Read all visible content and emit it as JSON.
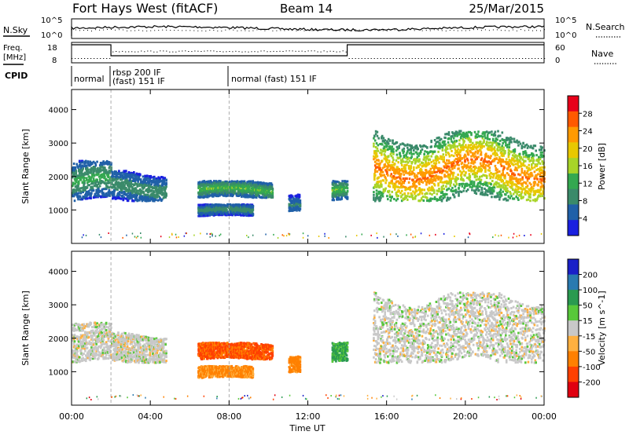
{
  "header": {
    "radar": "Fort Hays West (fitACF)",
    "beam": "Beam 14",
    "date": "25/Mar/2015"
  },
  "noise_panel": {
    "left_label": "N.Sky",
    "right_label": "N.Search",
    "left_ticks": [
      "10^5",
      "10^0"
    ],
    "right_ticks": [
      "10^5",
      "10^0"
    ]
  },
  "freq_panel": {
    "left_label_1": "Freq.",
    "left_label_2": "[MHz]",
    "right_label": "Nave",
    "left_ticks": [
      "18",
      "8"
    ],
    "right_ticks": [
      "60",
      "0"
    ]
  },
  "cpid_panel": {
    "label": "CPID",
    "modes": [
      "normal",
      "rbsp 200 IF",
      "(fast) 151 IF",
      "normal (fast) 151 IF"
    ]
  },
  "chart_data": [
    {
      "type": "heatmap",
      "panel": "power",
      "ylabel": "Slant Range [km]",
      "xlabel": "",
      "y_ticks": [
        "1000",
        "2000",
        "3000",
        "4000"
      ],
      "ylim": [
        0,
        4600
      ],
      "xlim_hours": [
        0,
        24
      ],
      "colorbar": {
        "title": "Power [dB]",
        "ticks": [
          "28",
          "24",
          "20",
          "16",
          "12",
          "8",
          "4"
        ],
        "colors": [
          "#e8001a",
          "#ff5a00",
          "#ff9a00",
          "#e8c800",
          "#a8d428",
          "#34a850",
          "#3a8a6a",
          "#2060a8",
          "#1a20e0"
        ]
      },
      "echo_regions": [
        {
          "t0": 0.0,
          "t1": 2.0,
          "r0": 1300,
          "r1": 2500,
          "peak": 12
        },
        {
          "t0": 2.0,
          "t1": 4.8,
          "r0": 1300,
          "r1": 2200,
          "peak": 10
        },
        {
          "t0": 6.4,
          "t1": 10.2,
          "r0": 1400,
          "r1": 1900,
          "peak": 14
        },
        {
          "t0": 6.4,
          "t1": 9.2,
          "r0": 850,
          "r1": 1200,
          "peak": 10
        },
        {
          "t0": 11.0,
          "t1": 11.6,
          "r0": 1000,
          "r1": 1600,
          "peak": 8
        },
        {
          "t0": 13.2,
          "t1": 14.0,
          "r0": 1300,
          "r1": 1900,
          "peak": 14
        },
        {
          "t0": 15.3,
          "t1": 24.0,
          "r0": 1300,
          "r1": 3400,
          "peak": 24
        }
      ]
    },
    {
      "type": "heatmap",
      "panel": "velocity",
      "ylabel": "Slant Range [km]",
      "xlabel": "Time UT",
      "y_ticks": [
        "1000",
        "2000",
        "3000",
        "4000"
      ],
      "x_ticks": [
        "00:00",
        "04:00",
        "08:00",
        "12:00",
        "16:00",
        "20:00",
        "00:00"
      ],
      "ylim": [
        0,
        4600
      ],
      "xlim_hours": [
        0,
        24
      ],
      "colorbar": {
        "title": "Velocity [m s^-1]",
        "ticks": [
          "200",
          "100",
          "50",
          "15",
          "-15",
          "-50",
          "-100",
          "-200"
        ],
        "colors": [
          "#1a20c8",
          "#2a7ab0",
          "#2a9a50",
          "#58c83a",
          "#c8c8c8",
          "#ffb040",
          "#ff8000",
          "#ff4000",
          "#e00010"
        ]
      },
      "echo_regions": [
        {
          "t0": 0.0,
          "t1": 2.0,
          "r0": 1300,
          "r1": 2500,
          "velocity": 0
        },
        {
          "t0": 2.0,
          "t1": 4.8,
          "r0": 1300,
          "r1": 2200,
          "velocity": 0
        },
        {
          "t0": 6.4,
          "t1": 10.2,
          "r0": 1400,
          "r1": 1900,
          "velocity": -80
        },
        {
          "t0": 6.4,
          "t1": 9.2,
          "r0": 850,
          "r1": 1200,
          "velocity": -40
        },
        {
          "t0": 11.0,
          "t1": 11.6,
          "r0": 1000,
          "r1": 1600,
          "velocity": -50
        },
        {
          "t0": 13.2,
          "t1": 14.0,
          "r0": 1300,
          "r1": 1900,
          "velocity": 40
        },
        {
          "t0": 15.3,
          "t1": 24.0,
          "r0": 1300,
          "r1": 3400,
          "velocity": 0
        }
      ]
    }
  ]
}
